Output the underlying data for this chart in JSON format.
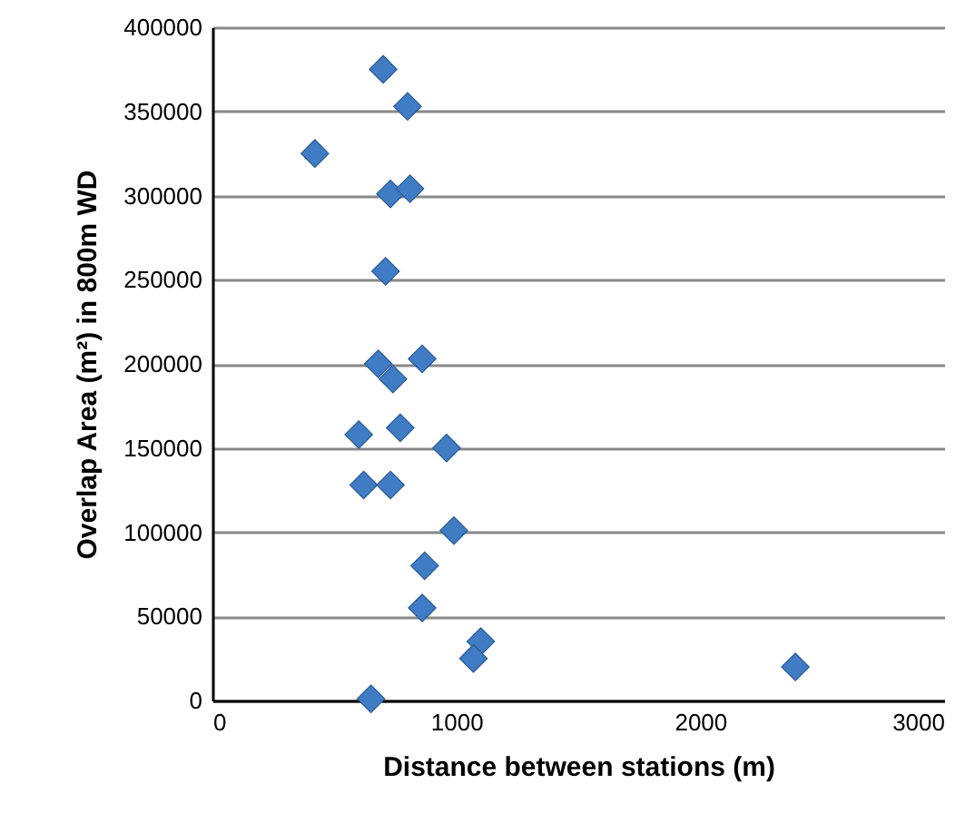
{
  "chart_data": {
    "type": "scatter",
    "xlabel": "Distance between stations (m)",
    "ylabel": "Overlap Area (m²) in 800m WD",
    "x": [
      700,
      800,
      420,
      730,
      810,
      710,
      680,
      860,
      740,
      600,
      770,
      960,
      620,
      730,
      990,
      870,
      860,
      1100,
      1070,
      650,
      2390
    ],
    "series": [
      {
        "color": "#3f7cc4",
        "values": [
          375000,
          353000,
          325000,
          301000,
          304000,
          255000,
          200000,
          203000,
          191000,
          158000,
          162000,
          150000,
          128000,
          128000,
          101000,
          80000,
          55000,
          35000,
          25000,
          1000,
          20000
        ]
      }
    ],
    "xlim": [
      0,
      3000
    ],
    "xticks": [
      0,
      1000,
      2000,
      3000
    ],
    "ylim": [
      0,
      400000
    ],
    "yticks": [
      0,
      50000,
      100000,
      150000,
      200000,
      250000,
      300000,
      350000,
      400000
    ],
    "grid": "y",
    "marker": "diamond"
  }
}
